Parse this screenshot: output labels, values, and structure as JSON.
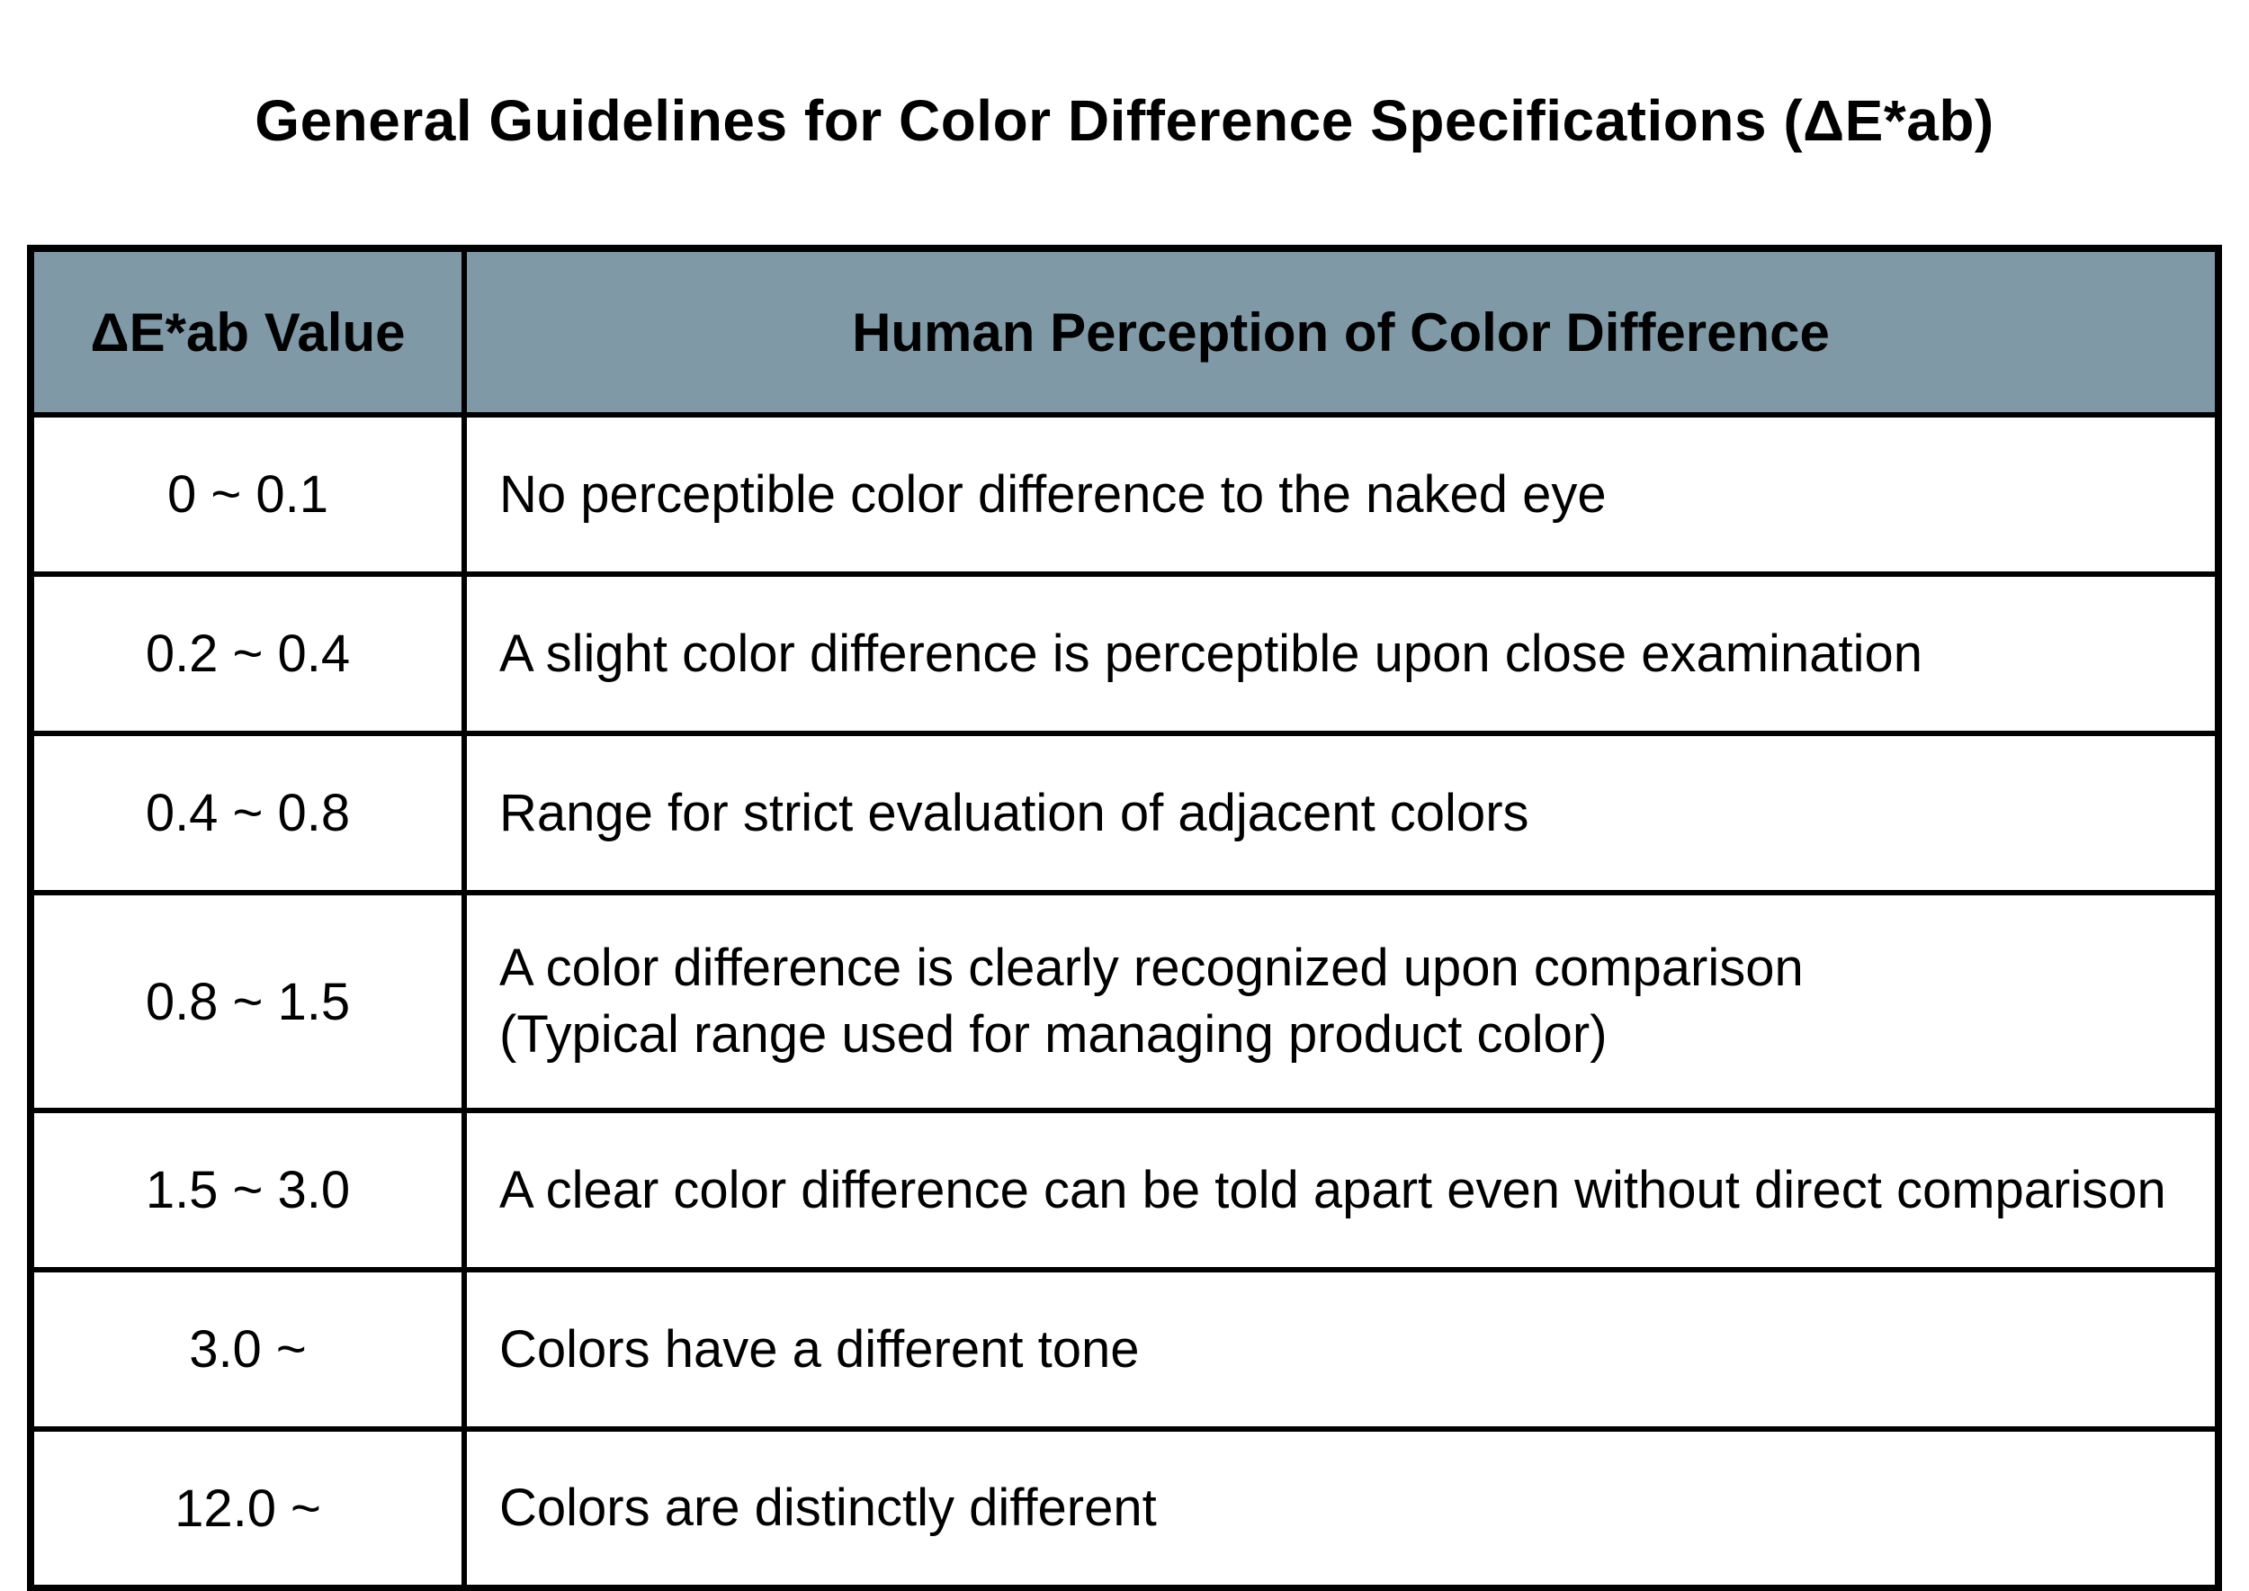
{
  "page": {
    "title": "General Guidelines for Color Difference Specifications (ΔE*ab)"
  },
  "table": {
    "columns": [
      {
        "label": "ΔE*ab Value"
      },
      {
        "label": "Human Perception of Color Difference"
      }
    ],
    "rows": [
      {
        "value": "0 ~ 0.1",
        "perception": [
          "No perceptible color difference to the naked eye"
        ]
      },
      {
        "value": "0.2 ~ 0.4",
        "perception": [
          "A slight color difference is perceptible upon close examination"
        ]
      },
      {
        "value": "0.4 ~ 0.8",
        "perception": [
          "Range for strict evaluation of adjacent colors"
        ]
      },
      {
        "value": "0.8 ~ 1.5",
        "perception": [
          "A color difference is clearly recognized upon comparison",
          "(Typical range used for managing product color)"
        ]
      },
      {
        "value": "1.5 ~ 3.0",
        "perception": [
          "A clear color difference can be told apart even without direct comparison"
        ]
      },
      {
        "value": "3.0 ~",
        "perception": [
          "Colors have a different tone"
        ]
      },
      {
        "value": "12.0 ~",
        "perception": [
          "Colors are distinctly different"
        ]
      }
    ],
    "colors": {
      "header_bg": "#8099A6",
      "header_text": "#000000",
      "border": "#000000",
      "body_bg": "#ffffff"
    }
  }
}
